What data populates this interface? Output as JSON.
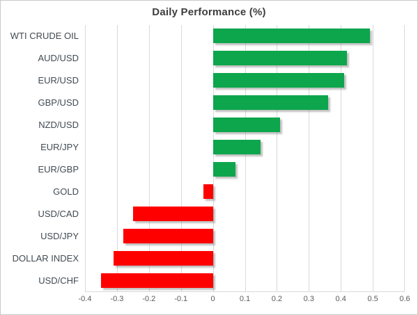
{
  "chart_data": {
    "type": "bar",
    "orientation": "horizontal",
    "title": "Daily Performance (%)",
    "categories": [
      "WTI CRUDE OIL",
      "AUD/USD",
      "EUR/USD",
      "GBP/USD",
      "NZD/USD",
      "EUR/JPY",
      "EUR/GBP",
      "GOLD",
      "USD/CAD",
      "USD/JPY",
      "DOLLAR INDEX",
      "USD/CHF"
    ],
    "values": [
      0.49,
      0.42,
      0.41,
      0.36,
      0.21,
      0.15,
      0.07,
      -0.03,
      -0.25,
      -0.28,
      -0.31,
      -0.35
    ],
    "xlim": [
      -0.4,
      0.6
    ],
    "xticks": [
      -0.4,
      -0.3,
      -0.2,
      -0.1,
      0,
      0.1,
      0.2,
      0.3,
      0.4,
      0.5,
      0.6
    ],
    "xtick_labels": [
      "-0.4",
      "-0.3",
      "-0.2",
      "-0.1",
      "0",
      "0.1",
      "0.2",
      "0.3",
      "0.4",
      "0.5",
      "0.6"
    ],
    "grid": true,
    "legend": "none",
    "positive_color": "#0DA64C",
    "negative_color": "#FE0000",
    "gridline_color": "#d9d9d9"
  }
}
